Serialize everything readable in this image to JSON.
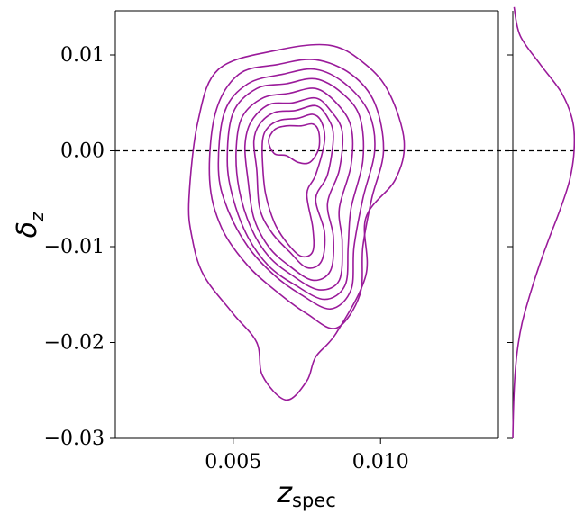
{
  "chart_data": {
    "type": "kde-contour-with-marginal",
    "xlabel_main": "z",
    "xlabel_sub": "spec",
    "ylabel_main": "δ",
    "ylabel_sub": "z",
    "xlim": [
      0.001,
      0.014
    ],
    "ylim": [
      -0.03,
      0.015
    ],
    "x_ticks": [
      0.005,
      0.01
    ],
    "x_tick_labels": [
      "0.005",
      "0.010"
    ],
    "y_ticks": [
      0.01,
      0.0,
      -0.01,
      -0.02,
      -0.03
    ],
    "y_tick_labels": [
      "0.01",
      "0.00",
      "−0.01",
      "−0.02",
      "−0.03"
    ],
    "reference_line_y": 0.0,
    "color": "#9a1a9a",
    "marginal_y": {
      "y": [
        0.015,
        0.012,
        0.009,
        0.006,
        0.003,
        0.0,
        -0.003,
        -0.006,
        -0.009,
        -0.012,
        -0.015,
        -0.018,
        -0.021,
        -0.024,
        -0.027,
        -0.03
      ],
      "density": [
        0.02,
        0.12,
        0.45,
        0.8,
        0.98,
        1.0,
        0.93,
        0.78,
        0.6,
        0.43,
        0.28,
        0.15,
        0.07,
        0.03,
        0.01,
        0.0
      ]
    },
    "contours": [
      {
        "level": 1,
        "points": [
          [
            0.0035,
            -0.005
          ],
          [
            0.0038,
            0.003
          ],
          [
            0.0045,
            0.0085
          ],
          [
            0.0065,
            0.0105
          ],
          [
            0.0083,
            0.011
          ],
          [
            0.0095,
            0.009
          ],
          [
            0.0103,
            0.006
          ],
          [
            0.0108,
            0.001
          ],
          [
            0.0105,
            -0.003
          ],
          [
            0.0095,
            -0.007
          ],
          [
            0.0095,
            -0.013
          ],
          [
            0.0085,
            -0.019
          ],
          [
            0.0078,
            -0.0215
          ],
          [
            0.0075,
            -0.024
          ],
          [
            0.0068,
            -0.026
          ],
          [
            0.006,
            -0.0235
          ],
          [
            0.0058,
            -0.02
          ],
          [
            0.005,
            -0.017
          ],
          [
            0.004,
            -0.013
          ],
          [
            0.0036,
            -0.009
          ]
        ]
      },
      {
        "level": 2,
        "points": [
          [
            0.0042,
            -0.003
          ],
          [
            0.0044,
            0.004
          ],
          [
            0.0052,
            0.008
          ],
          [
            0.0065,
            0.009
          ],
          [
            0.0078,
            0.0095
          ],
          [
            0.009,
            0.008
          ],
          [
            0.0098,
            0.005
          ],
          [
            0.0101,
            0.0
          ],
          [
            0.0097,
            -0.005
          ],
          [
            0.0094,
            -0.01
          ],
          [
            0.0093,
            -0.015
          ],
          [
            0.0085,
            -0.0185
          ],
          [
            0.0075,
            -0.017
          ],
          [
            0.0066,
            -0.015
          ],
          [
            0.0055,
            -0.012
          ],
          [
            0.0046,
            -0.008
          ]
        ]
      },
      {
        "level": 3,
        "points": [
          [
            0.0045,
            -0.002
          ],
          [
            0.0047,
            0.004
          ],
          [
            0.0055,
            0.007
          ],
          [
            0.0067,
            0.008
          ],
          [
            0.0078,
            0.0085
          ],
          [
            0.0088,
            0.007
          ],
          [
            0.0096,
            0.004
          ],
          [
            0.0098,
            0.0
          ],
          [
            0.0094,
            -0.005
          ],
          [
            0.0091,
            -0.01
          ],
          [
            0.009,
            -0.0145
          ],
          [
            0.0083,
            -0.0165
          ],
          [
            0.0073,
            -0.015
          ],
          [
            0.0064,
            -0.013
          ],
          [
            0.0055,
            -0.01
          ],
          [
            0.0048,
            -0.006
          ]
        ]
      },
      {
        "level": 4,
        "points": [
          [
            0.0048,
            -0.001
          ],
          [
            0.005,
            0.004
          ],
          [
            0.0058,
            0.0065
          ],
          [
            0.0068,
            0.007
          ],
          [
            0.0078,
            0.0075
          ],
          [
            0.0087,
            0.006
          ],
          [
            0.0093,
            0.0035
          ],
          [
            0.0094,
            -0.001
          ],
          [
            0.009,
            -0.006
          ],
          [
            0.0089,
            -0.01
          ],
          [
            0.0088,
            -0.014
          ],
          [
            0.0081,
            -0.0155
          ],
          [
            0.0071,
            -0.014
          ],
          [
            0.0062,
            -0.012
          ],
          [
            0.0055,
            -0.009
          ],
          [
            0.005,
            -0.005
          ]
        ]
      },
      {
        "level": 5,
        "points": [
          [
            0.0051,
            0.0
          ],
          [
            0.0053,
            0.0035
          ],
          [
            0.006,
            0.0055
          ],
          [
            0.0069,
            0.006
          ],
          [
            0.0078,
            0.0065
          ],
          [
            0.0085,
            0.005
          ],
          [
            0.009,
            0.0025
          ],
          [
            0.009,
            -0.0015
          ],
          [
            0.0086,
            -0.006
          ],
          [
            0.0087,
            -0.0095
          ],
          [
            0.0086,
            -0.0135
          ],
          [
            0.0079,
            -0.0145
          ],
          [
            0.007,
            -0.013
          ],
          [
            0.0062,
            -0.011
          ],
          [
            0.0056,
            -0.008
          ],
          [
            0.0052,
            -0.004
          ]
        ]
      },
      {
        "level": 6,
        "points": [
          [
            0.0054,
            0.0005
          ],
          [
            0.0056,
            0.003
          ],
          [
            0.0062,
            0.0048
          ],
          [
            0.007,
            0.005
          ],
          [
            0.0078,
            0.0055
          ],
          [
            0.0083,
            0.0042
          ],
          [
            0.0087,
            0.002
          ],
          [
            0.0086,
            -0.002
          ],
          [
            0.0082,
            -0.0055
          ],
          [
            0.0084,
            -0.009
          ],
          [
            0.0083,
            -0.0125
          ],
          [
            0.0077,
            -0.0135
          ],
          [
            0.0069,
            -0.012
          ],
          [
            0.0062,
            -0.01
          ],
          [
            0.0057,
            -0.007
          ],
          [
            0.0055,
            -0.003
          ]
        ]
      },
      {
        "level": 7,
        "points": [
          [
            0.0057,
            0.001
          ],
          [
            0.0059,
            0.0028
          ],
          [
            0.0064,
            0.004
          ],
          [
            0.0071,
            0.0042
          ],
          [
            0.0078,
            0.0047
          ],
          [
            0.0082,
            0.0035
          ],
          [
            0.0084,
            0.0015
          ],
          [
            0.0082,
            -0.0025
          ],
          [
            0.0078,
            -0.005
          ],
          [
            0.0081,
            -0.0085
          ],
          [
            0.008,
            -0.0115
          ],
          [
            0.0075,
            -0.0122
          ],
          [
            0.0069,
            -0.0105
          ],
          [
            0.0063,
            -0.0085
          ],
          [
            0.0059,
            -0.006
          ],
          [
            0.0058,
            -0.002
          ]
        ]
      },
      {
        "level": 8,
        "points": [
          [
            0.006,
            0.0012
          ],
          [
            0.0062,
            0.0025
          ],
          [
            0.0066,
            0.0032
          ],
          [
            0.0072,
            0.0034
          ],
          [
            0.0077,
            0.0038
          ],
          [
            0.008,
            0.003
          ],
          [
            0.0081,
            0.001
          ],
          [
            0.0078,
            -0.0025
          ],
          [
            0.0075,
            -0.0045
          ],
          [
            0.0077,
            -0.008
          ],
          [
            0.0077,
            -0.0105
          ],
          [
            0.0073,
            -0.011
          ],
          [
            0.0068,
            -0.0095
          ],
          [
            0.0064,
            -0.0075
          ],
          [
            0.0061,
            -0.0045
          ],
          [
            0.006,
            -0.0015
          ]
        ]
      },
      {
        "level": 9,
        "points": [
          [
            0.0062,
            0.001
          ],
          [
            0.0064,
            0.0022
          ],
          [
            0.0068,
            0.0026
          ],
          [
            0.0073,
            0.0026
          ],
          [
            0.0077,
            0.0028
          ],
          [
            0.0079,
            0.002
          ],
          [
            0.0079,
            0.0002
          ],
          [
            0.0076,
            -0.0012
          ],
          [
            0.0072,
            -0.0012
          ],
          [
            0.0068,
            -0.0005
          ],
          [
            0.0064,
            -0.0003
          ]
        ]
      }
    ]
  }
}
